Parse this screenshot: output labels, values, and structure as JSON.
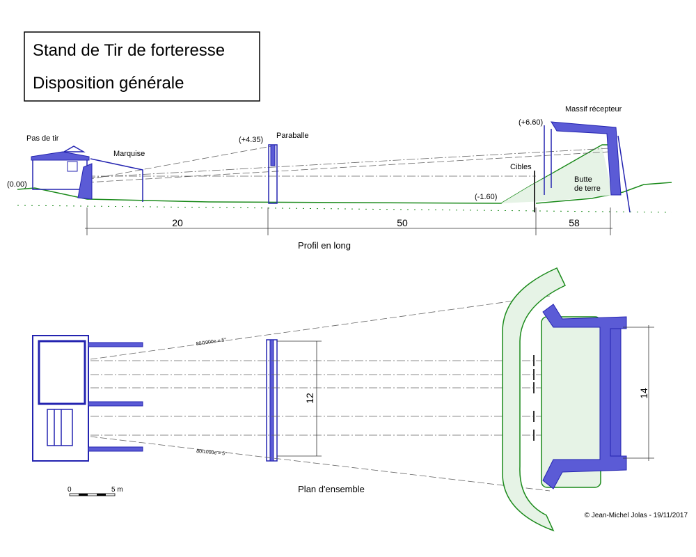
{
  "header": {
    "title_lines": [
      "Stand de Tir de forteresse",
      "Disposition générale"
    ]
  },
  "profile": {
    "caption": "Profil en long",
    "labels": {
      "firing_post": "Pas de tir",
      "canopy": "Marquise",
      "baffle": "Paraballe",
      "receiver": "Massif récepteur",
      "targets": "Cibles",
      "earth_mound": [
        "Butte",
        "de terre"
      ]
    },
    "elevations": {
      "firing_post": "(0.00)",
      "baffle": "(+4.35)",
      "receiver": "(+6.60)",
      "targets": "(-1.60)"
    },
    "dimensions": [
      "20",
      "50",
      "58"
    ]
  },
  "plan": {
    "caption": "Plan d'ensemble",
    "angle_labels": [
      "80/1000e = 5°",
      "80/1000e = 5°"
    ],
    "dimensions": [
      "12",
      "14"
    ],
    "scale": [
      "0",
      "5 m"
    ]
  },
  "credit": "© Jean-Michel Jolas - 19/11/2017"
}
